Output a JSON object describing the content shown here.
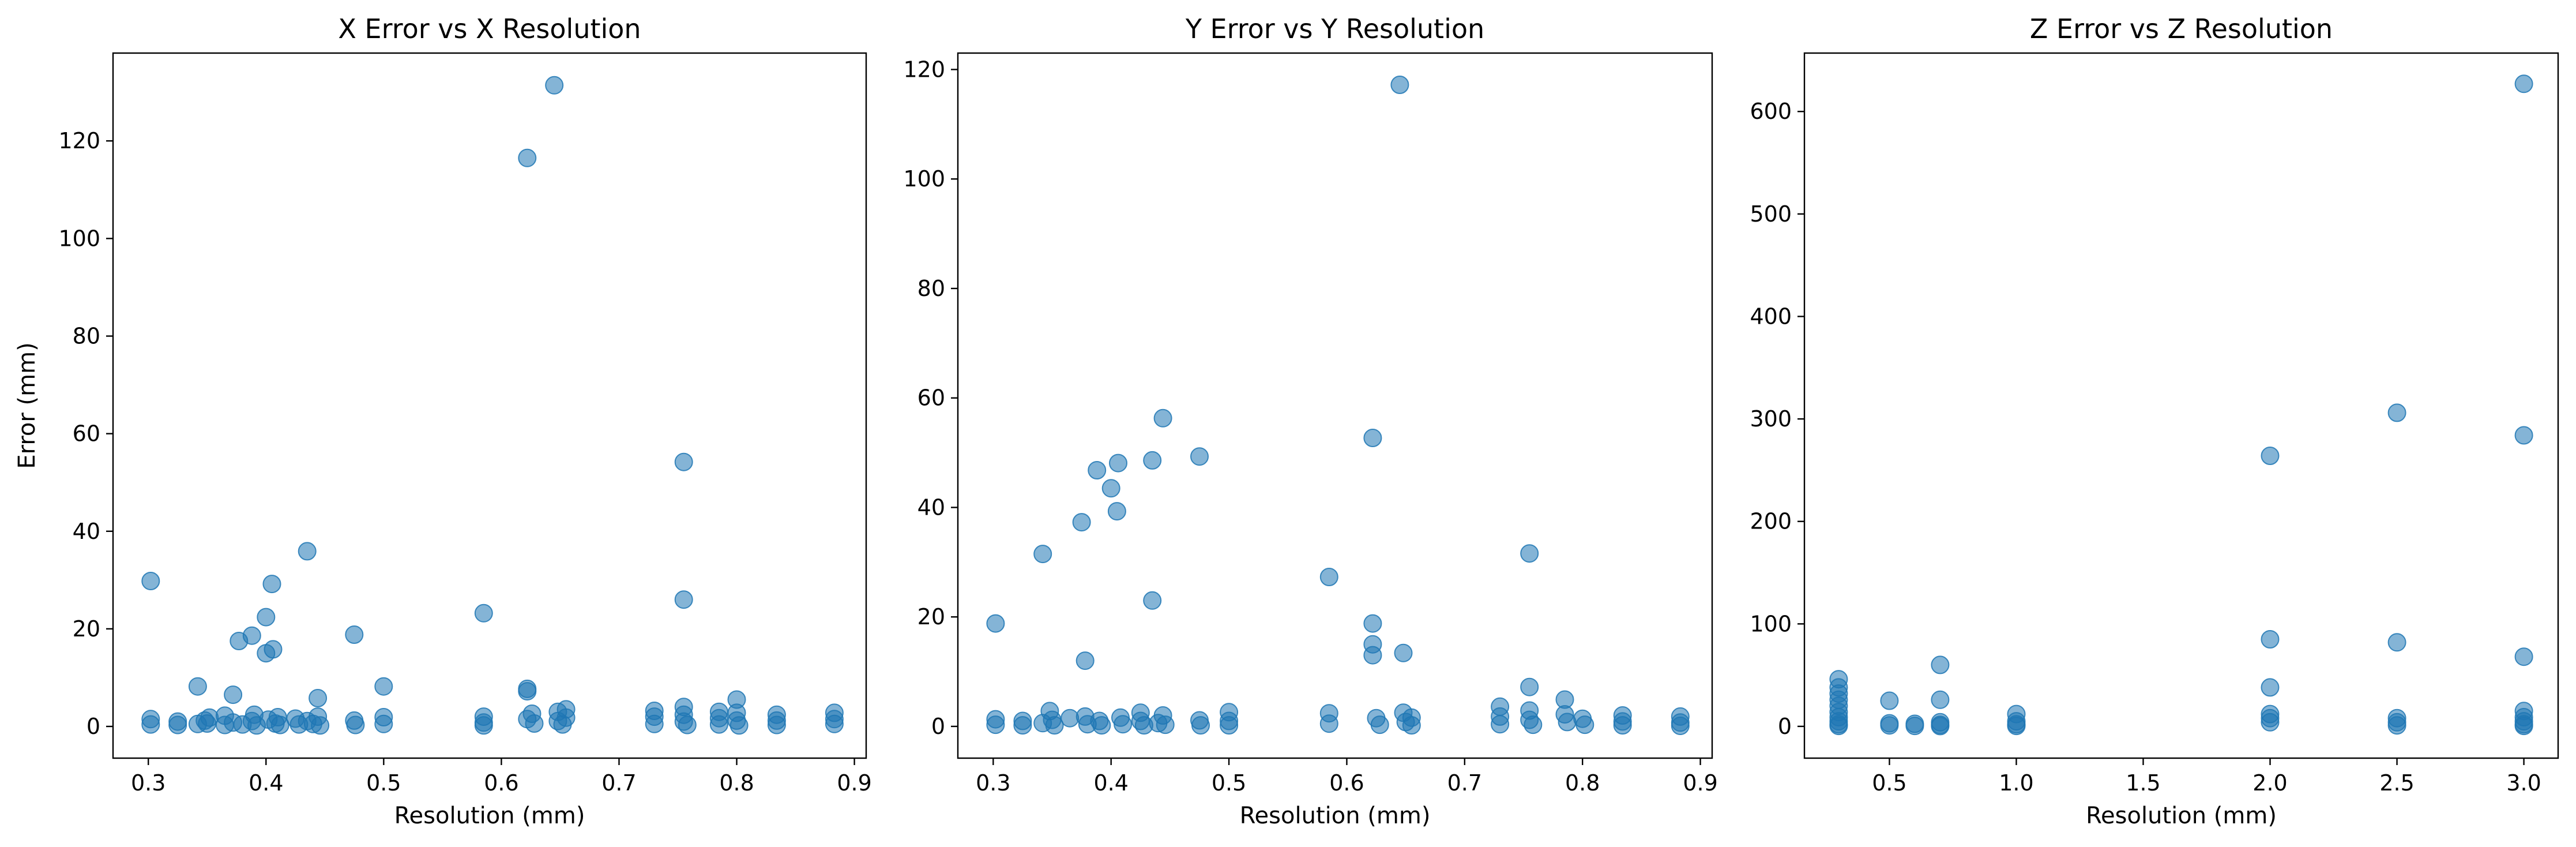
{
  "chart_data": [
    {
      "type": "scatter",
      "title": "X Error vs X Resolution",
      "xlabel": "Resolution (mm)",
      "ylabel": "Error (mm)",
      "xlim": [
        0.27,
        0.91
      ],
      "ylim": [
        -6.5,
        138
      ],
      "xticks": [
        0.3,
        0.4,
        0.5,
        0.6,
        0.7,
        0.8,
        0.9
      ],
      "xtick_labels": [
        "0.3",
        "0.4",
        "0.5",
        "0.6",
        "0.7",
        "0.8",
        "0.9"
      ],
      "yticks": [
        0,
        20,
        40,
        60,
        80,
        100,
        120
      ],
      "ytick_labels": [
        "0",
        "20",
        "40",
        "60",
        "80",
        "100",
        "120"
      ],
      "marker_color": "#1f77b4",
      "marker_alpha": 0.55,
      "points": [
        [
          0.302,
          29.8
        ],
        [
          0.302,
          1.5
        ],
        [
          0.302,
          0.4
        ],
        [
          0.325,
          1.0
        ],
        [
          0.325,
          0.3
        ],
        [
          0.342,
          8.2
        ],
        [
          0.342,
          0.5
        ],
        [
          0.348,
          1.2
        ],
        [
          0.35,
          0.6
        ],
        [
          0.352,
          1.8
        ],
        [
          0.365,
          2.2
        ],
        [
          0.365,
          0.3
        ],
        [
          0.372,
          6.5
        ],
        [
          0.372,
          0.8
        ],
        [
          0.377,
          17.5
        ],
        [
          0.38,
          0.4
        ],
        [
          0.388,
          18.6
        ],
        [
          0.388,
          1.1
        ],
        [
          0.39,
          2.4
        ],
        [
          0.392,
          0.2
        ],
        [
          0.4,
          22.4
        ],
        [
          0.4,
          15.0
        ],
        [
          0.402,
          1.4
        ],
        [
          0.405,
          29.2
        ],
        [
          0.406,
          15.8
        ],
        [
          0.408,
          0.6
        ],
        [
          0.41,
          1.9
        ],
        [
          0.412,
          0.3
        ],
        [
          0.425,
          1.6
        ],
        [
          0.428,
          0.4
        ],
        [
          0.435,
          35.9
        ],
        [
          0.435,
          1.1
        ],
        [
          0.44,
          0.5
        ],
        [
          0.444,
          5.8
        ],
        [
          0.444,
          2.0
        ],
        [
          0.446,
          0.2
        ],
        [
          0.475,
          18.8
        ],
        [
          0.475,
          1.2
        ],
        [
          0.476,
          0.3
        ],
        [
          0.5,
          8.2
        ],
        [
          0.5,
          1.9
        ],
        [
          0.5,
          0.5
        ],
        [
          0.585,
          23.2
        ],
        [
          0.585,
          2.0
        ],
        [
          0.585,
          0.8
        ],
        [
          0.585,
          0.2
        ],
        [
          0.622,
          116.5
        ],
        [
          0.622,
          7.7
        ],
        [
          0.622,
          7.2
        ],
        [
          0.622,
          1.5
        ],
        [
          0.626,
          2.6
        ],
        [
          0.628,
          0.6
        ],
        [
          0.645,
          131.4
        ],
        [
          0.648,
          3.0
        ],
        [
          0.648,
          1.1
        ],
        [
          0.652,
          0.4
        ],
        [
          0.655,
          3.5
        ],
        [
          0.655,
          1.8
        ],
        [
          0.73,
          3.2
        ],
        [
          0.73,
          2.0
        ],
        [
          0.73,
          0.5
        ],
        [
          0.755,
          54.2
        ],
        [
          0.755,
          26.0
        ],
        [
          0.755,
          4.0
        ],
        [
          0.755,
          2.4
        ],
        [
          0.755,
          1.0
        ],
        [
          0.758,
          0.3
        ],
        [
          0.785,
          3.0
        ],
        [
          0.785,
          1.7
        ],
        [
          0.785,
          0.4
        ],
        [
          0.8,
          5.5
        ],
        [
          0.8,
          2.8
        ],
        [
          0.8,
          1.2
        ],
        [
          0.802,
          0.2
        ],
        [
          0.834,
          2.4
        ],
        [
          0.834,
          1.2
        ],
        [
          0.834,
          0.3
        ],
        [
          0.883,
          2.8
        ],
        [
          0.883,
          1.5
        ],
        [
          0.883,
          0.5
        ]
      ]
    },
    {
      "type": "scatter",
      "title": "Y Error vs Y Resolution",
      "xlabel": "Resolution (mm)",
      "ylabel": "",
      "xlim": [
        0.27,
        0.91
      ],
      "ylim": [
        -5.8,
        123
      ],
      "xticks": [
        0.3,
        0.4,
        0.5,
        0.6,
        0.7,
        0.8,
        0.9
      ],
      "xtick_labels": [
        "0.3",
        "0.4",
        "0.5",
        "0.6",
        "0.7",
        "0.8",
        "0.9"
      ],
      "yticks": [
        0,
        20,
        40,
        60,
        80,
        100,
        120
      ],
      "ytick_labels": [
        "0",
        "20",
        "40",
        "60",
        "80",
        "100",
        "120"
      ],
      "marker_color": "#1f77b4",
      "marker_alpha": 0.55,
      "points": [
        [
          0.302,
          18.8
        ],
        [
          0.302,
          1.3
        ],
        [
          0.302,
          0.3
        ],
        [
          0.325,
          1.0
        ],
        [
          0.325,
          0.2
        ],
        [
          0.342,
          31.5
        ],
        [
          0.342,
          0.6
        ],
        [
          0.348,
          2.8
        ],
        [
          0.35,
          1.2
        ],
        [
          0.352,
          0.2
        ],
        [
          0.365,
          1.5
        ],
        [
          0.375,
          37.3
        ],
        [
          0.378,
          12.0
        ],
        [
          0.378,
          1.8
        ],
        [
          0.38,
          0.4
        ],
        [
          0.388,
          46.8
        ],
        [
          0.39,
          1.0
        ],
        [
          0.392,
          0.2
        ],
        [
          0.4,
          43.5
        ],
        [
          0.405,
          39.3
        ],
        [
          0.406,
          48.1
        ],
        [
          0.408,
          1.6
        ],
        [
          0.41,
          0.4
        ],
        [
          0.425,
          2.5
        ],
        [
          0.425,
          1.0
        ],
        [
          0.428,
          0.2
        ],
        [
          0.435,
          48.6
        ],
        [
          0.435,
          23.0
        ],
        [
          0.44,
          0.6
        ],
        [
          0.444,
          56.3
        ],
        [
          0.444,
          2.0
        ],
        [
          0.446,
          0.3
        ],
        [
          0.475,
          49.3
        ],
        [
          0.475,
          1.1
        ],
        [
          0.476,
          0.2
        ],
        [
          0.5,
          2.6
        ],
        [
          0.5,
          1.0
        ],
        [
          0.5,
          0.2
        ],
        [
          0.585,
          27.3
        ],
        [
          0.585,
          2.4
        ],
        [
          0.585,
          0.5
        ],
        [
          0.622,
          52.7
        ],
        [
          0.622,
          18.8
        ],
        [
          0.622,
          15.0
        ],
        [
          0.622,
          13.0
        ],
        [
          0.625,
          1.5
        ],
        [
          0.628,
          0.3
        ],
        [
          0.645,
          117.2
        ],
        [
          0.648,
          13.4
        ],
        [
          0.648,
          2.5
        ],
        [
          0.65,
          0.8
        ],
        [
          0.655,
          1.6
        ],
        [
          0.655,
          0.2
        ],
        [
          0.73,
          3.6
        ],
        [
          0.73,
          1.8
        ],
        [
          0.73,
          0.4
        ],
        [
          0.755,
          31.6
        ],
        [
          0.755,
          7.2
        ],
        [
          0.755,
          2.9
        ],
        [
          0.755,
          1.2
        ],
        [
          0.758,
          0.3
        ],
        [
          0.785,
          4.9
        ],
        [
          0.785,
          2.2
        ],
        [
          0.787,
          0.8
        ],
        [
          0.8,
          1.4
        ],
        [
          0.802,
          0.3
        ],
        [
          0.834,
          2.0
        ],
        [
          0.834,
          0.9
        ],
        [
          0.834,
          0.2
        ],
        [
          0.883,
          1.8
        ],
        [
          0.883,
          0.7
        ],
        [
          0.883,
          0.1
        ]
      ]
    },
    {
      "type": "scatter",
      "title": "Z Error vs Z Resolution",
      "xlabel": "Resolution (mm)",
      "ylabel": "",
      "xlim": [
        0.165,
        3.135
      ],
      "ylim": [
        -31,
        657
      ],
      "xticks": [
        0.5,
        1.0,
        1.5,
        2.0,
        2.5,
        3.0
      ],
      "xtick_labels": [
        "0.5",
        "1.0",
        "1.5",
        "2.0",
        "2.5",
        "3.0"
      ],
      "yticks": [
        0,
        100,
        200,
        300,
        400,
        500,
        600
      ],
      "ytick_labels": [
        "0",
        "100",
        "200",
        "300",
        "400",
        "500",
        "600"
      ],
      "marker_color": "#1f77b4",
      "marker_alpha": 0.55,
      "points": [
        [
          0.3,
          46.0
        ],
        [
          0.3,
          38.0
        ],
        [
          0.3,
          32.0
        ],
        [
          0.3,
          26.0
        ],
        [
          0.3,
          20.0
        ],
        [
          0.3,
          14.0
        ],
        [
          0.3,
          9.0
        ],
        [
          0.3,
          5.0
        ],
        [
          0.3,
          2.0
        ],
        [
          0.3,
          0.5
        ],
        [
          0.5,
          25.0
        ],
        [
          0.5,
          3.0
        ],
        [
          0.5,
          1.0
        ],
        [
          0.6,
          2.5
        ],
        [
          0.6,
          0.5
        ],
        [
          0.7,
          60.0
        ],
        [
          0.7,
          26.0
        ],
        [
          0.7,
          4.0
        ],
        [
          0.7,
          1.5
        ],
        [
          0.7,
          0.3
        ],
        [
          1.0,
          12.0
        ],
        [
          1.0,
          5.0
        ],
        [
          1.0,
          2.0
        ],
        [
          1.0,
          0.5
        ],
        [
          2.0,
          264.0
        ],
        [
          2.0,
          85.0
        ],
        [
          2.0,
          38.0
        ],
        [
          2.0,
          12.0
        ],
        [
          2.0,
          8.0
        ],
        [
          2.0,
          4.0
        ],
        [
          2.5,
          306.0
        ],
        [
          2.5,
          82.0
        ],
        [
          2.5,
          8.0
        ],
        [
          2.5,
          4.0
        ],
        [
          2.5,
          1.0
        ],
        [
          3.0,
          627.0
        ],
        [
          3.0,
          284.0
        ],
        [
          3.0,
          68.0
        ],
        [
          3.0,
          15.0
        ],
        [
          3.0,
          9.0
        ],
        [
          3.0,
          5.0
        ],
        [
          3.0,
          2.0
        ],
        [
          3.0,
          0.5
        ]
      ]
    }
  ]
}
